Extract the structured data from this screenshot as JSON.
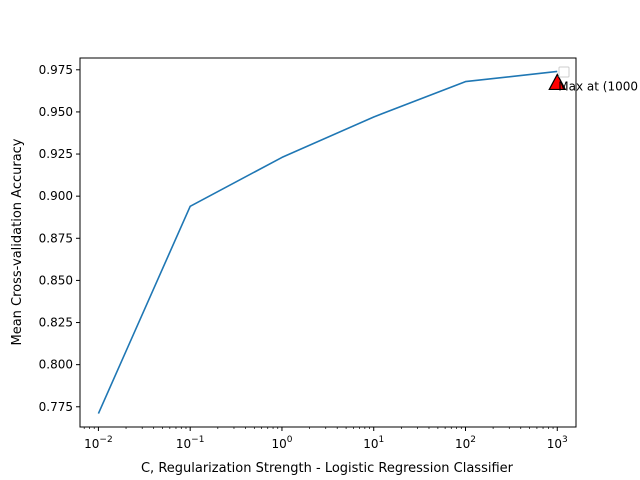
{
  "chart_data": {
    "type": "line",
    "x": [
      0.01,
      0.1,
      1,
      10,
      100,
      1000
    ],
    "series": [
      {
        "values": [
          0.771,
          0.894,
          0.923,
          0.947,
          0.968,
          0.974
        ],
        "color": "#1f77b4"
      }
    ],
    "xlabel": "C, Regularization Strength - Logistic Regression Classifier",
    "ylabel": "Mean Cross-validation Accuracy",
    "xscale": "log",
    "xlim": [
      0.0063,
      1600
    ],
    "ylim": [
      0.763,
      0.982
    ],
    "xticks": [
      0.01,
      0.1,
      1,
      10,
      100,
      1000
    ],
    "xtick_labels": [
      {
        "base": "10",
        "exp": "−2"
      },
      {
        "base": "10",
        "exp": "−1"
      },
      {
        "base": "10",
        "exp": "0"
      },
      {
        "base": "10",
        "exp": "1"
      },
      {
        "base": "10",
        "exp": "2"
      },
      {
        "base": "10",
        "exp": "3"
      }
    ],
    "yticks": [
      0.775,
      0.8,
      0.825,
      0.85,
      0.875,
      0.9,
      0.925,
      0.95,
      0.975
    ],
    "ytick_labels": [
      "0.775",
      "0.800",
      "0.825",
      "0.850",
      "0.875",
      "0.900",
      "0.925",
      "0.950",
      "0.975"
    ],
    "grid": false,
    "legend_placement": "top-right",
    "marker": {
      "x": 1000,
      "y": 0.9675,
      "shape": "triangle",
      "color": "#ff0000"
    },
    "annotation": {
      "text": "Max at (1000",
      "x": 1000,
      "y": 0.9655
    }
  }
}
